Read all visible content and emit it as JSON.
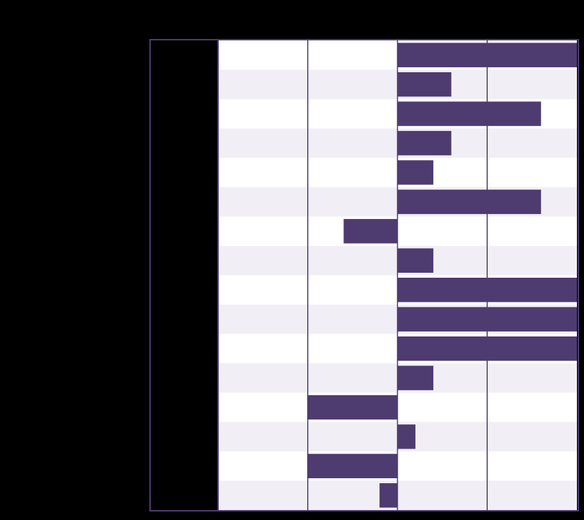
{
  "colors": {
    "background": "#000000",
    "label_panel": "#000000",
    "frame": "#4e3b70",
    "bar": "#4e3b70",
    "band_light": "#ffffff",
    "band_shaded": "#f1eff5",
    "grid": "#4e3b70"
  },
  "chart_data": {
    "type": "bar",
    "orientation": "horizontal",
    "title": "",
    "xlabel": "",
    "ylabel": "",
    "categories": [
      "",
      "",
      "",
      "",
      "",
      "",
      "",
      "",
      "",
      "",
      "",
      "",
      "",
      "",
      "",
      ""
    ],
    "values": [
      2,
      0.6,
      1.6,
      0.6,
      0.4,
      1.6,
      -0.6,
      0.4,
      2,
      2,
      2,
      0.4,
      -1,
      0.2,
      -1,
      -0.2
    ],
    "xlim": [
      -2,
      2
    ],
    "gridlines_x": [
      -1,
      0,
      1
    ],
    "grid": true,
    "legend": "none",
    "alternating_row_bands": true
  }
}
